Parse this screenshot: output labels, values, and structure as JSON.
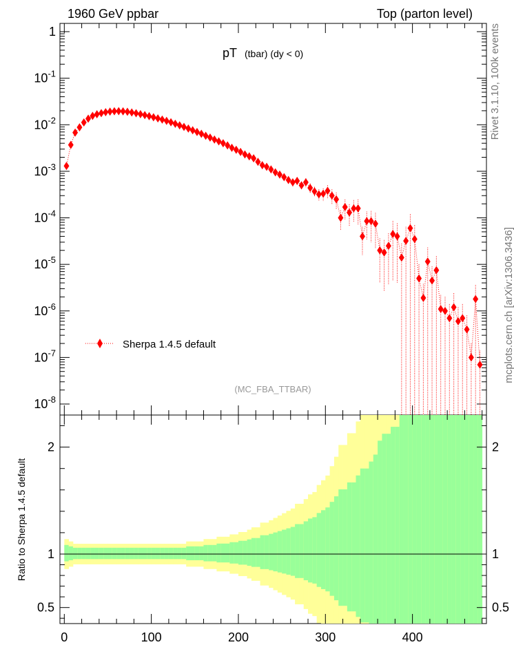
{
  "header": {
    "left": "1960 GeV ppbar",
    "right": "Top (parton level)"
  },
  "side_labels": {
    "rivet": "Rivet 3.1.10,  100k events",
    "mcplots": "mcplots.cern.ch [arXiv:1306.3436]"
  },
  "chart_data": [
    {
      "type": "scatter",
      "title_main": "pT",
      "title_sub": "(tbar) (dy < 0)",
      "watermark": "(MC_FBA_TTBAR)",
      "yscale": "log",
      "ylim": [
        1e-08,
        1.5
      ],
      "xlim": [
        -5,
        485
      ],
      "y_tick_labels": [
        "1",
        "10^-1",
        "10^-2",
        "10^-3",
        "10^-4",
        "10^-5",
        "10^-6",
        "10^-7",
        "10^-8"
      ],
      "legend": {
        "position": "bottom-left",
        "entry": "Sherpa 1.4.5 default"
      },
      "colors": {
        "series": "#ff0000"
      },
      "series": [
        {
          "name": "Sherpa 1.4.5 default",
          "x": [
            2.5,
            7.5,
            12.5,
            17.5,
            22.5,
            27.5,
            32.5,
            37.5,
            42.5,
            47.5,
            52.5,
            57.5,
            62.5,
            67.5,
            72.5,
            77.5,
            82.5,
            87.5,
            92.5,
            97.5,
            102.5,
            107.5,
            112.5,
            117.5,
            122.5,
            127.5,
            132.5,
            137.5,
            142.5,
            147.5,
            152.5,
            157.5,
            162.5,
            167.5,
            172.5,
            177.5,
            182.5,
            187.5,
            192.5,
            197.5,
            202.5,
            207.5,
            212.5,
            217.5,
            222.5,
            227.5,
            232.5,
            237.5,
            242.5,
            247.5,
            252.5,
            257.5,
            262.5,
            267.5,
            272.5,
            277.5,
            282.5,
            287.5,
            292.5,
            297.5,
            302.5,
            307.5,
            312.5,
            317.5,
            322.5,
            327.5,
            332.5,
            337.5,
            342.5,
            347.5,
            352.5,
            357.5,
            362.5,
            367.5,
            372.5,
            377.5,
            382.5,
            387.5,
            392.5,
            397.5,
            402.5,
            407.5,
            412.5,
            417.5,
            422.5,
            427.5,
            432.5,
            437.5,
            442.5,
            447.5,
            452.5,
            457.5,
            462.5,
            467.5,
            472.5,
            477.5
          ],
          "y": [
            0.0013,
            0.0037,
            0.0068,
            0.0088,
            0.0112,
            0.0135,
            0.0155,
            0.0168,
            0.0178,
            0.0186,
            0.0192,
            0.0195,
            0.0196,
            0.0194,
            0.019,
            0.0184,
            0.0177,
            0.0169,
            0.0161,
            0.0153,
            0.0145,
            0.0137,
            0.0129,
            0.0121,
            0.0113,
            0.0105,
            0.0097,
            0.009,
            0.0083,
            0.0076,
            0.007,
            0.0064,
            0.0058,
            0.0053,
            0.0048,
            0.0044,
            0.004,
            0.0036,
            0.0032,
            0.0029,
            0.0026,
            0.0023,
            0.0021,
            0.0019,
            0.0016,
            0.00135,
            0.00125,
            0.0011,
            0.00095,
            0.00085,
            0.00075,
            0.00065,
            0.00058,
            0.00062,
            0.0005,
            0.00058,
            0.00044,
            0.00037,
            0.00032,
            0.00033,
            0.00038,
            0.0003,
            0.00025,
            0.0001,
            0.00017,
            0.00013,
            0.00016,
            0.00016,
            4e-05,
            8.5e-05,
            8.5e-05,
            7.5e-05,
            2e-05,
            1.8e-05,
            2.5e-05,
            4.5e-05,
            4e-05,
            1.4e-05,
            3.2e-05,
            6e-05,
            3.5e-05,
            5e-06,
            1.9e-06,
            1.15e-05,
            4.5e-06,
            7.5e-06,
            1.1e-06,
            1e-06,
            7e-07,
            1.2e-06,
            6e-07,
            7e-07,
            4e-07,
            1e-07,
            1.8e-06,
            7e-08
          ],
          "err_rel": [
            0.05,
            0.04,
            0.03,
            0.03,
            0.03,
            0.03,
            0.03,
            0.03,
            0.03,
            0.03,
            0.03,
            0.03,
            0.03,
            0.03,
            0.03,
            0.03,
            0.03,
            0.03,
            0.03,
            0.03,
            0.03,
            0.03,
            0.03,
            0.03,
            0.03,
            0.03,
            0.03,
            0.03,
            0.04,
            0.04,
            0.04,
            0.04,
            0.05,
            0.05,
            0.05,
            0.06,
            0.06,
            0.06,
            0.07,
            0.07,
            0.08,
            0.08,
            0.09,
            0.1,
            0.1,
            0.12,
            0.12,
            0.13,
            0.14,
            0.15,
            0.16,
            0.17,
            0.18,
            0.2,
            0.2,
            0.22,
            0.24,
            0.25,
            0.28,
            0.3,
            0.32,
            0.36,
            0.4,
            0.45,
            0.45,
            0.5,
            0.5,
            0.55,
            0.6,
            0.6,
            0.65,
            0.7,
            0.8,
            0.85,
            0.85,
            0.9,
            0.9,
            1.0,
            1.0,
            1.0,
            1.0,
            1.0,
            1.0,
            1.0,
            1.0,
            1.0,
            1.0,
            1.0,
            1.0,
            1.0,
            1.0,
            1.0,
            1.0,
            1.0,
            1.0,
            1.0
          ]
        }
      ]
    },
    {
      "type": "area",
      "ylabel": "Ratio to Sherpa 1.4.5 default",
      "ylim": [
        0.35,
        2.3
      ],
      "xlim": [
        -5,
        485
      ],
      "x_tick_labels": [
        "0",
        "100",
        "200",
        "300",
        "400"
      ],
      "y_tick_labels": [
        "0.5",
        "1",
        "2"
      ],
      "colors": {
        "inner_band": "#99ff99",
        "outer_band": "#ffff99",
        "line": "#000000"
      },
      "reference_line": 1
    }
  ]
}
